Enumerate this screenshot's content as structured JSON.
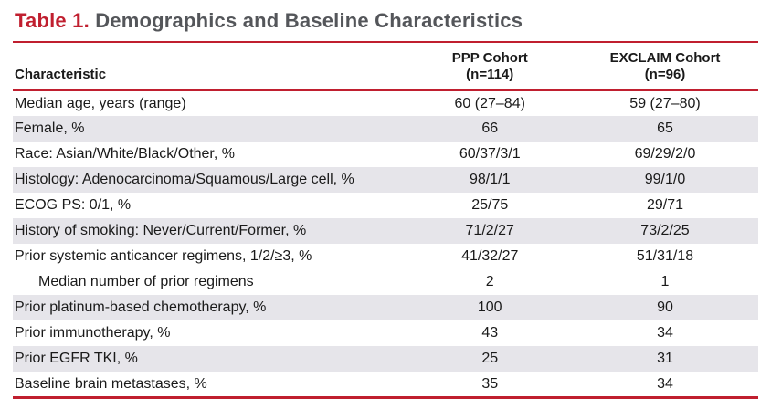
{
  "title": {
    "label": "Table 1.",
    "text": "Demographics and Baseline Characteristics"
  },
  "table": {
    "headers": {
      "characteristic": "Characteristic",
      "ppp": {
        "line1": "PPP Cohort",
        "line2": "(n=114)"
      },
      "exclaim": {
        "line1": "EXCLAIM Cohort",
        "line2": "(n=96)"
      }
    },
    "rows": [
      {
        "characteristic": "Median age, years (range)",
        "ppp": "60 (27–84)",
        "exclaim": "59 (27–80)"
      },
      {
        "characteristic": "Female, %",
        "ppp": "66",
        "exclaim": "65"
      },
      {
        "characteristic": "Race: Asian/White/Black/Other, %",
        "ppp": "60/37/3/1",
        "exclaim": "69/29/2/0"
      },
      {
        "characteristic": "Histology: Adenocarcinoma/Squamous/Large cell, %",
        "ppp": "98/1/1",
        "exclaim": "99/1/0"
      },
      {
        "characteristic": "ECOG PS: 0/1, %",
        "ppp": "25/75",
        "exclaim": "29/71"
      },
      {
        "characteristic": "History of smoking: Never/Current/Former, %",
        "ppp": "71/2/27",
        "exclaim": "73/2/25"
      },
      {
        "characteristic": "Prior systemic anticancer regimens, 1/2/≥3, %",
        "ppp": "41/32/27",
        "exclaim": "51/31/18"
      },
      {
        "characteristic": "Median number of prior regimens",
        "ppp": "2",
        "exclaim": "1"
      },
      {
        "characteristic": "Prior platinum-based chemotherapy, %",
        "ppp": "100",
        "exclaim": "90"
      },
      {
        "characteristic": "Prior immunotherapy, %",
        "ppp": "43",
        "exclaim": "34"
      },
      {
        "characteristic": "Prior EGFR TKI, %",
        "ppp": "25",
        "exclaim": "31"
      },
      {
        "characteristic": "Baseline brain metastases, %",
        "ppp": "35",
        "exclaim": "34"
      }
    ]
  },
  "colors": {
    "accent_red": "#C01F2F",
    "title_gray": "#54565A",
    "row_shade": "#E6E5EA",
    "text": "#1A1A1A"
  }
}
